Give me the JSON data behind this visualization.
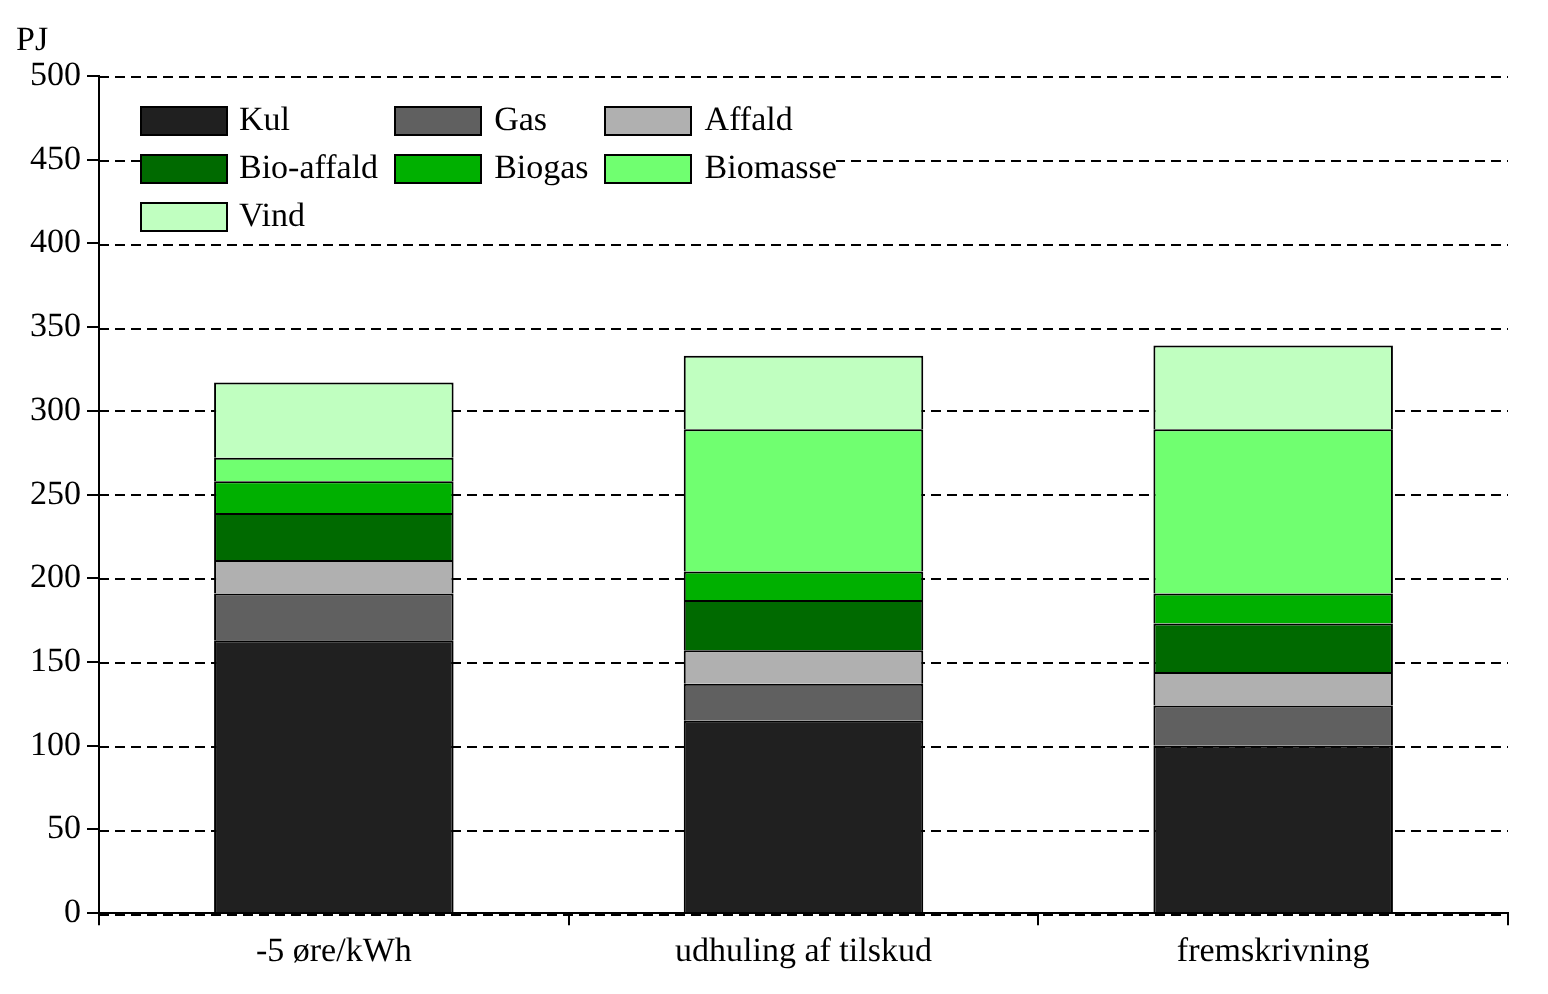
{
  "chart_data": {
    "type": "bar",
    "ylabel": "PJ",
    "categories": [
      "-5 øre/kWh",
      "udhuling af tilskud",
      "fremskrivning"
    ],
    "stacked": true,
    "ylim": [
      0,
      500
    ],
    "yticks": [
      0,
      50,
      100,
      150,
      200,
      250,
      300,
      350,
      400,
      450,
      500
    ],
    "grid": "y",
    "legend": "top left",
    "series": [
      {
        "name": "Kul",
        "color": "#202020",
        "values": [
          163,
          115,
          100
        ]
      },
      {
        "name": "Gas",
        "color": "#606060",
        "values": [
          28,
          22,
          24
        ]
      },
      {
        "name": "Affald",
        "color": "#b0b0b0",
        "values": [
          20,
          20,
          20
        ]
      },
      {
        "name": "Bio-affald",
        "color": "#006a00",
        "values": [
          28,
          30,
          29
        ]
      },
      {
        "name": "Biogas",
        "color": "#00b000",
        "values": [
          19,
          17,
          18
        ]
      },
      {
        "name": "Biomasse",
        "color": "#70ff70",
        "values": [
          14,
          85,
          98
        ]
      },
      {
        "name": "Vind",
        "color": "#c0ffc0",
        "values": [
          45,
          44,
          50
        ]
      }
    ]
  }
}
